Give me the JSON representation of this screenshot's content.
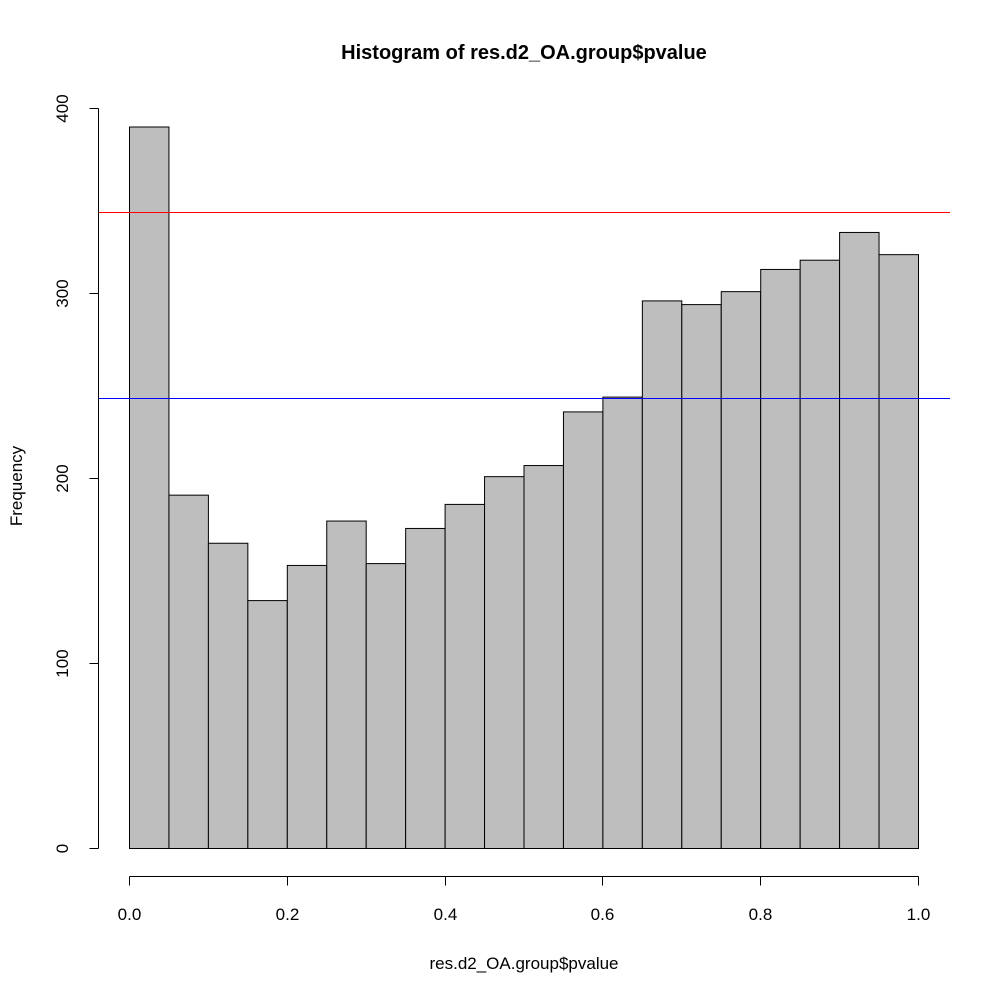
{
  "chart_data": {
    "type": "bar",
    "subtype": "histogram",
    "title": "Histogram of res.d2_OA.group$pvalue",
    "xlabel": "res.d2_OA.group$pvalue",
    "ylabel": "Frequency",
    "bin_edges": [
      0.0,
      0.05,
      0.1,
      0.15,
      0.2,
      0.25,
      0.3,
      0.35,
      0.4,
      0.45,
      0.5,
      0.55,
      0.6,
      0.65,
      0.7,
      0.75,
      0.8,
      0.85,
      0.9,
      0.95,
      1.0
    ],
    "values": [
      390,
      191,
      165,
      134,
      153,
      177,
      154,
      173,
      186,
      201,
      207,
      236,
      244,
      296,
      294,
      301,
      313,
      318,
      333,
      321
    ],
    "xlim": [
      0.0,
      1.0
    ],
    "ylim": [
      0,
      400
    ],
    "x_ticks": [
      "0.0",
      "0.2",
      "0.4",
      "0.6",
      "0.8",
      "1.0"
    ],
    "y_ticks": [
      "0",
      "100",
      "200",
      "300",
      "400"
    ],
    "bar_fill": "#bebebe",
    "bar_stroke": "#000000",
    "reference_lines": [
      {
        "y": 344,
        "color": "#ff0000"
      },
      {
        "y": 243,
        "color": "#0000ff"
      }
    ],
    "grid": false,
    "legend": "none"
  }
}
